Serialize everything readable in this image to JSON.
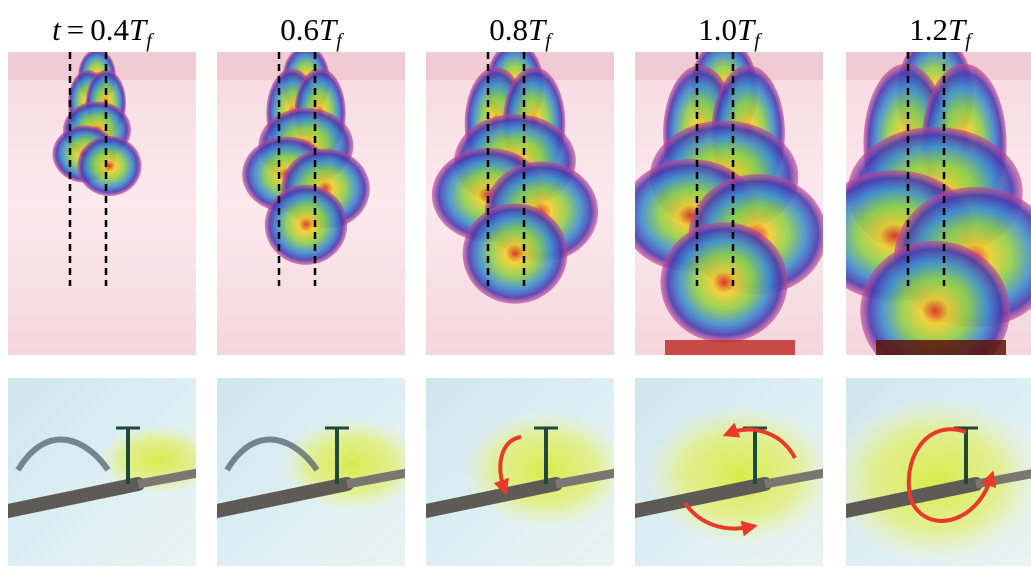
{
  "time_variable": "t",
  "relation": "=",
  "period_symbol": "T",
  "period_subscript": "f",
  "columns": [
    {
      "coefficient": "0.4"
    },
    {
      "coefficient": "0.6"
    },
    {
      "coefficient": "0.8"
    },
    {
      "coefficient": "1.0"
    },
    {
      "coefficient": "1.2"
    }
  ]
}
